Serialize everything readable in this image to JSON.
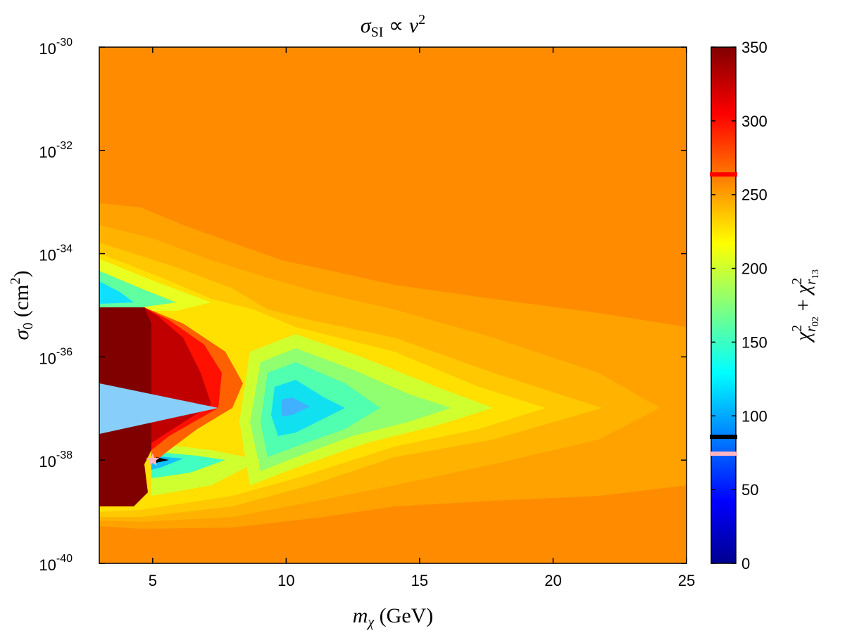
{
  "chart_data": {
    "type": "contour",
    "title": [
      "σ",
      "SI",
      " ∝ ",
      "v",
      "2"
    ],
    "xlabel": [
      "m",
      "χ",
      " (GeV)"
    ],
    "ylabel": [
      "σ",
      "0",
      " (cm",
      "2",
      ")"
    ],
    "xlim": [
      3,
      25
    ],
    "xticks": [
      5,
      10,
      15,
      20,
      25
    ],
    "ylim": [
      1e-40,
      1e-30
    ],
    "yscale": "log",
    "yticks": [
      {
        "value": 1e-30,
        "label": {
          "base": "10",
          "exp": "-30"
        }
      },
      {
        "value": 1e-32,
        "label": {
          "base": "10",
          "exp": "-32"
        }
      },
      {
        "value": 1e-34,
        "label": {
          "base": "10",
          "exp": "-34"
        }
      },
      {
        "value": 1e-36,
        "label": {
          "base": "10",
          "exp": "-36"
        }
      },
      {
        "value": 1e-38,
        "label": {
          "base": "10",
          "exp": "-38"
        }
      },
      {
        "value": 1e-40,
        "label": {
          "base": "10",
          "exp": "-40"
        }
      }
    ],
    "best_fit": {
      "x": 5,
      "y": 1e-38,
      "color": "#ffb6c1"
    },
    "colorbar": {
      "label": [
        "χ",
        "2",
        "r",
        "02",
        " + ",
        "χ",
        "2",
        "r",
        "13"
      ],
      "lim": [
        0,
        350
      ],
      "ticks": [
        0,
        50,
        100,
        150,
        200,
        250,
        300,
        350
      ],
      "markers": [
        {
          "value": 263.7,
          "color": "#ff0000"
        },
        {
          "value": 85.8,
          "color": "#000000"
        },
        {
          "value": 74.4,
          "color": "#ffb6c1"
        }
      ]
    }
  }
}
